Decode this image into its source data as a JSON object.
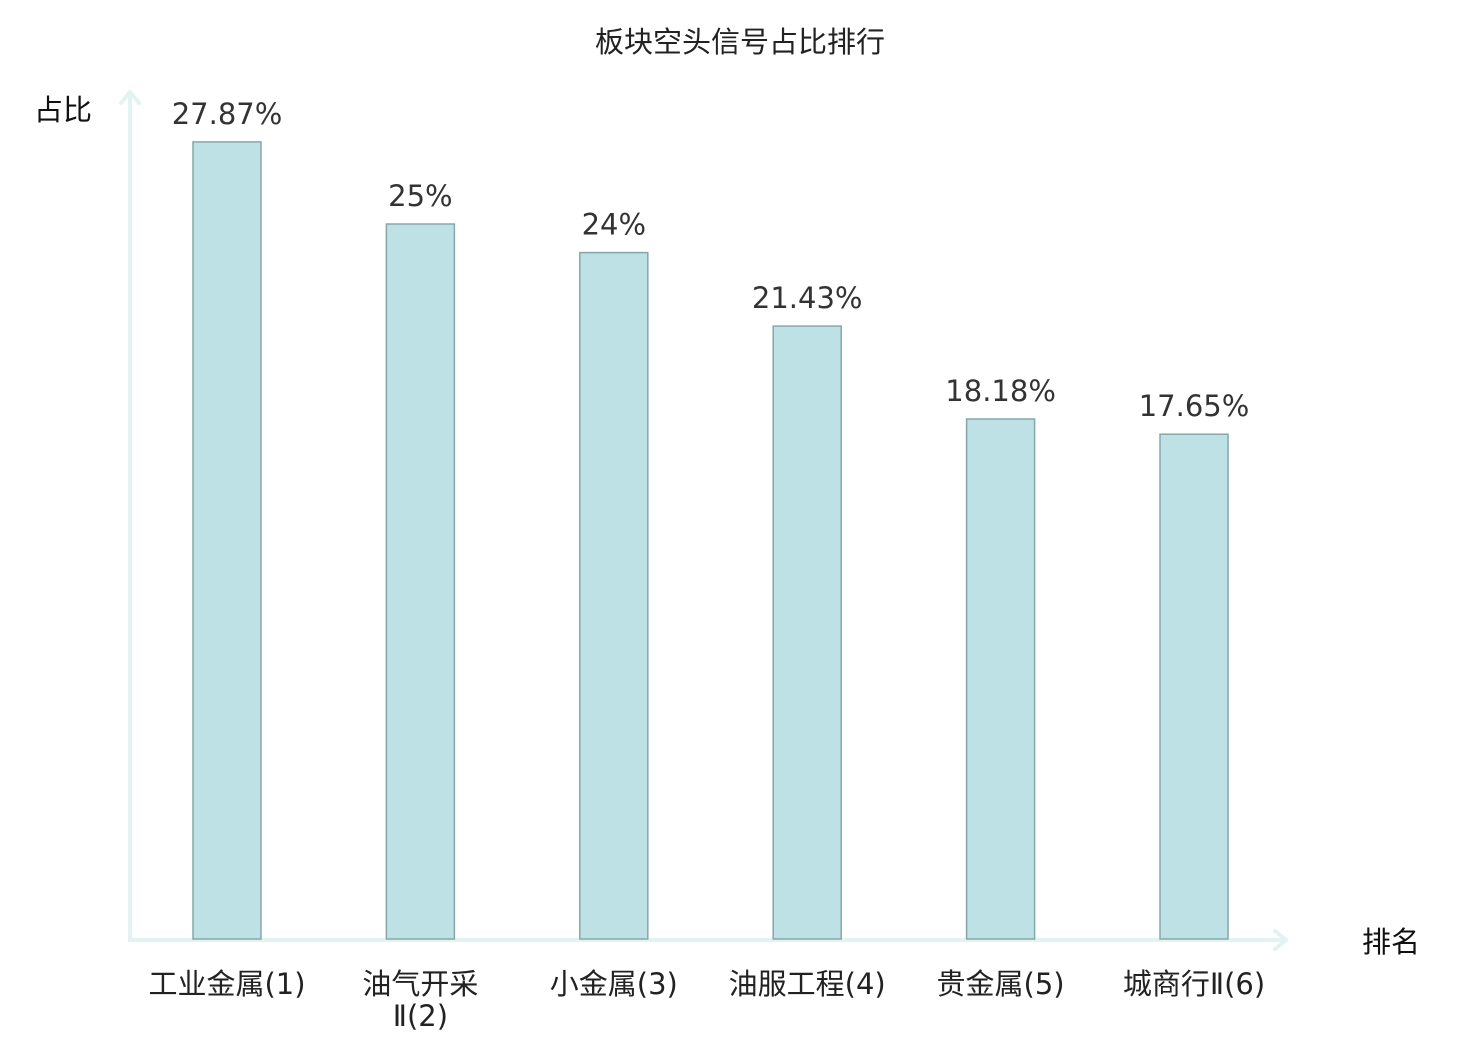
{
  "chart_data": {
    "type": "bar",
    "title": "板块空头信号占比排行",
    "ylabel": "占比",
    "xlabel": "排名",
    "categories": [
      [
        "工业金属(1)"
      ],
      [
        "油气开采",
        "Ⅱ(2)"
      ],
      [
        "小金属(3)"
      ],
      [
        "油服工程(4)"
      ],
      [
        "贵金属(5)"
      ],
      [
        "城商行Ⅱ(6)"
      ]
    ],
    "values": [
      27.87,
      25,
      24,
      21.43,
      18.18,
      17.65
    ],
    "value_labels": [
      "27.87%",
      "25%",
      "24%",
      "21.43%",
      "18.18%",
      "17.65%"
    ],
    "ylim": [
      0,
      28.6
    ],
    "grid": false,
    "legend": "none",
    "colors": {
      "bar_fill": "#bde1e4",
      "bar_stroke": "#86a7a9",
      "axis": "#e3f3f1",
      "highlight_label": "#e0201b",
      "label": "#222222"
    },
    "highlight_index": 5
  }
}
